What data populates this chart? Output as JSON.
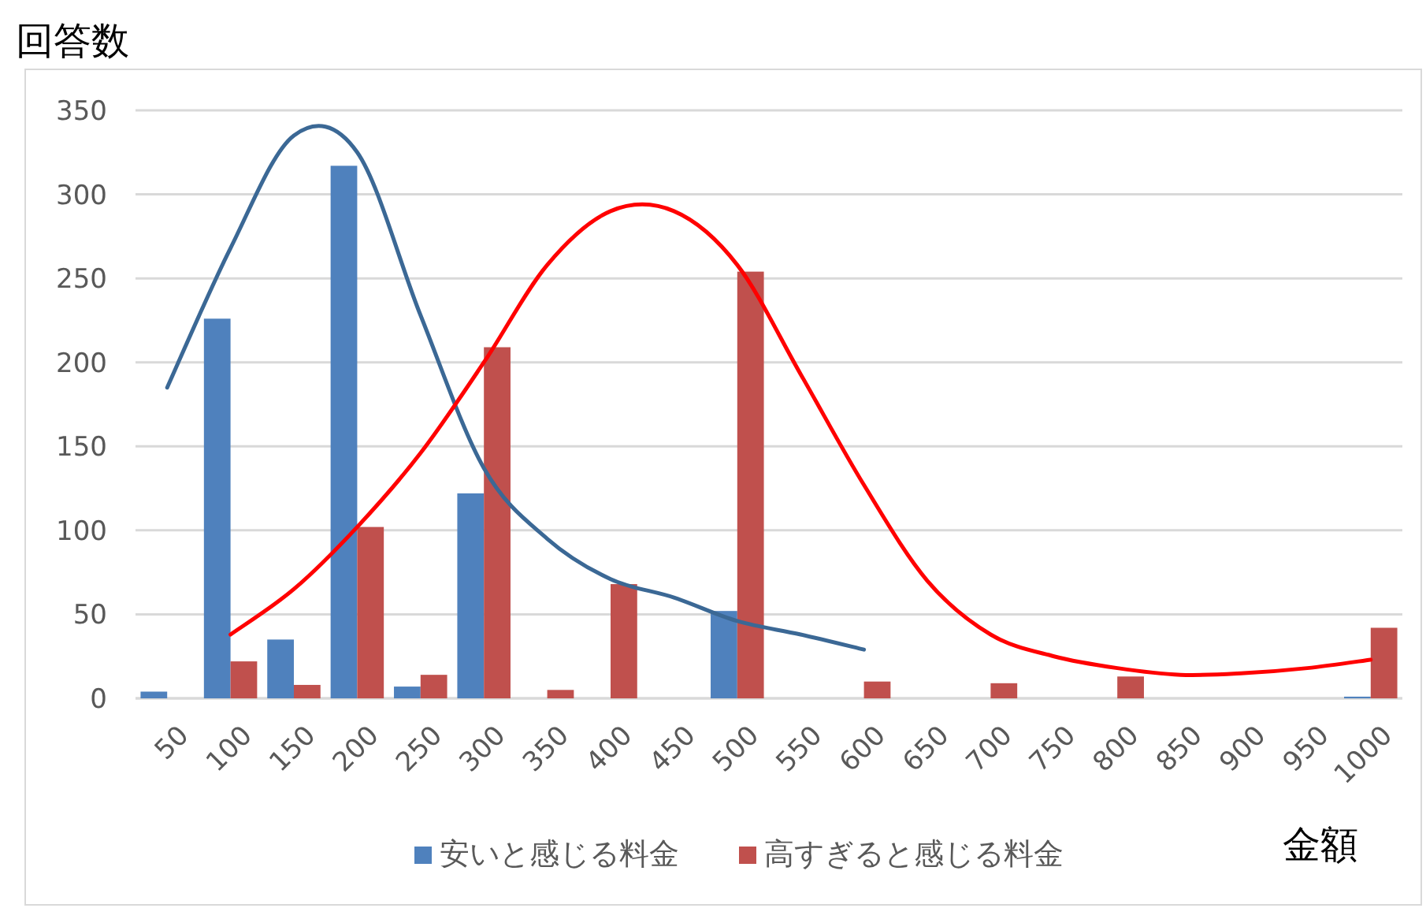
{
  "chart_data": {
    "type": "bar",
    "ylabel": "回答数",
    "xlabel": "金額",
    "categories": [
      "50",
      "100",
      "150",
      "200",
      "250",
      "300",
      "350",
      "400",
      "450",
      "500",
      "550",
      "600",
      "650",
      "700",
      "750",
      "800",
      "850",
      "900",
      "950",
      "1000"
    ],
    "series": [
      {
        "name": "安いと感じる料金",
        "color": "#4f81bd",
        "values": [
          4,
          226,
          35,
          317,
          7,
          122,
          0,
          0,
          0,
          52,
          0,
          0,
          0,
          0,
          0,
          0,
          0,
          0,
          0,
          1
        ]
      },
      {
        "name": "高すぎると感じる料金",
        "color": "#c0504d",
        "values": [
          0,
          22,
          8,
          102,
          14,
          209,
          5,
          68,
          0,
          254,
          0,
          10,
          0,
          9,
          0,
          13,
          0,
          0,
          0,
          42
        ]
      },
      {
        "type": "line",
        "color": "#3b6895",
        "marker": "none",
        "values": [
          185,
          268,
          335,
          325,
          228,
          137,
          95,
          71,
          60,
          46,
          38,
          29,
          null,
          null,
          null,
          null,
          null,
          null,
          null,
          null
        ]
      },
      {
        "type": "line",
        "color": "#ff0000",
        "marker": "none",
        "values": [
          null,
          38,
          65,
          102,
          146,
          200,
          258,
          290,
          290,
          258,
          193,
          127,
          70,
          38,
          25,
          18,
          14,
          15,
          18,
          23
        ]
      }
    ],
    "ylim": [
      0,
      350
    ],
    "yticks": [
      0,
      50,
      100,
      150,
      200,
      250,
      300,
      350
    ],
    "grid": "y",
    "legend": "bottom"
  }
}
